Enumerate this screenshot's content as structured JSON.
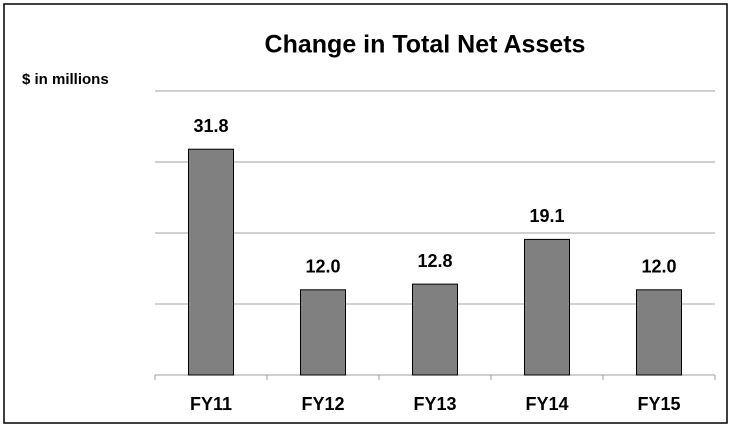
{
  "chart_data": {
    "type": "bar",
    "title": "Change in Total Net Assets",
    "y_label": "$ in millions",
    "categories": [
      "FY11",
      "FY12",
      "FY13",
      "FY14",
      "FY15"
    ],
    "values": [
      31.8,
      12.0,
      12.8,
      19.1,
      12.0
    ],
    "value_labels": [
      "31.8",
      "12.0",
      "12.8",
      "19.1",
      "12.0"
    ],
    "color": "#808080",
    "ylim": [
      0,
      40
    ],
    "yticks": [
      0,
      10,
      20,
      30,
      40
    ],
    "grid": true
  }
}
